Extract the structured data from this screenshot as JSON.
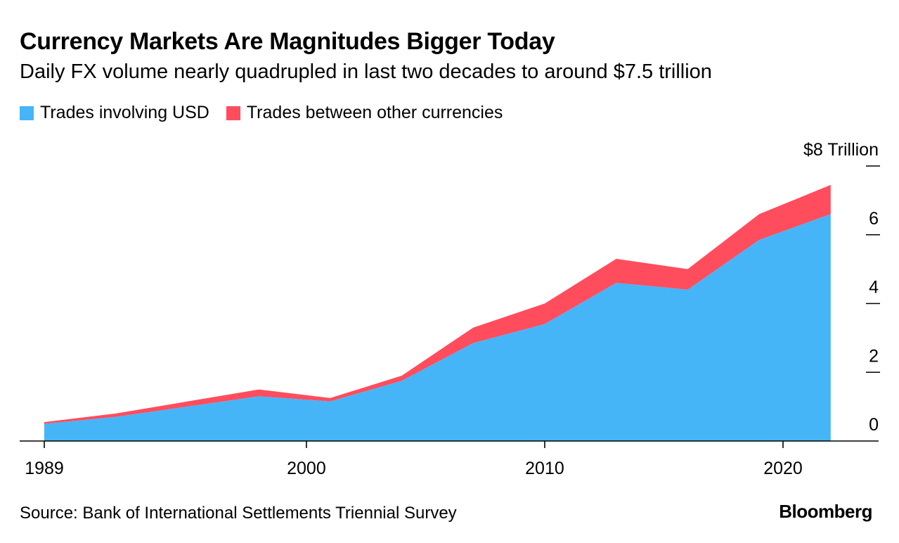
{
  "header": {
    "title": "Currency Markets Are Magnitudes Bigger Today",
    "subtitle": "Daily FX volume nearly quadrupled in last two decades to around $7.5 trillion"
  },
  "footer": {
    "source": "Source: Bank of International Settlements Triennial Survey",
    "brand": "Bloomberg"
  },
  "colors": {
    "usd": "#45b5f7",
    "other": "#ff4d5e",
    "axis": "#000000"
  },
  "chart_data": {
    "type": "area",
    "stacked": true,
    "title": "Currency Markets Are Magnitudes Bigger Today",
    "subtitle": "Daily FX volume nearly quadrupled in last two decades to around $7.5 trillion",
    "x": [
      1989,
      1992,
      1995,
      1998,
      2001,
      2004,
      2007,
      2010,
      2013,
      2016,
      2019,
      2022
    ],
    "series": [
      {
        "name": "Trades involving USD",
        "values": [
          0.5,
          0.7,
          1.0,
          1.3,
          1.15,
          1.75,
          2.85,
          3.4,
          4.6,
          4.4,
          5.85,
          6.6
        ]
      },
      {
        "name": "Trades between other currencies",
        "values": [
          0.05,
          0.1,
          0.15,
          0.2,
          0.1,
          0.15,
          0.45,
          0.6,
          0.7,
          0.6,
          0.75,
          0.85
        ]
      }
    ],
    "xticks": [
      "1989",
      "2000",
      "2010",
      "2020"
    ],
    "xtick_values": [
      1989,
      2000,
      2010,
      2020
    ],
    "yticks": [
      "0",
      "2",
      "4",
      "6",
      "$8 Trillion"
    ],
    "ytick_values": [
      0,
      2,
      4,
      6,
      8
    ],
    "xlim": [
      1988,
      2026
    ],
    "ylim": [
      0,
      8
    ],
    "ylabel_position": "right",
    "legend_position": "top-left",
    "grid": false
  }
}
